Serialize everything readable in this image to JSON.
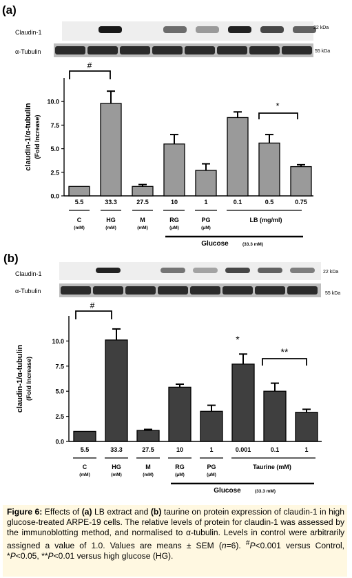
{
  "figure": {
    "panels": [
      {
        "label": "(a)",
        "blot_labels": {
          "claudin": "Claudin-1",
          "tubulin": "α-Tubulin"
        },
        "kda": {
          "claudin": "22 kDa",
          "tubulin": "55 kDa"
        },
        "claudin_band_intensity": [
          0.0,
          0.95,
          0.0,
          0.5,
          0.25,
          0.9,
          0.7,
          0.55
        ]
      },
      {
        "label": "(b)",
        "blot_labels": {
          "claudin": "Claudin-1",
          "tubulin": "α-Tubulin"
        },
        "kda": {
          "claudin": "22 kDa",
          "tubulin": "55 kDa"
        },
        "claudin_band_intensity": [
          0.0,
          0.9,
          0.0,
          0.45,
          0.2,
          0.7,
          0.55,
          0.4
        ]
      }
    ]
  },
  "chart_data": [
    {
      "type": "bar",
      "ylabel": "claudin-1/α-tubulin",
      "ylabel2": "(Fold Increase)",
      "ylim": [
        0,
        12.5
      ],
      "yticks": [
        "0.0",
        "2.5",
        "5.0",
        "7.5",
        "10.0"
      ],
      "ytick_values": [
        0,
        2.5,
        5,
        7.5,
        10
      ],
      "bar_color": "#9a9a9a",
      "categories": [
        "5.5",
        "33.3",
        "27.5",
        "10",
        "1",
        "0.1",
        "0.5",
        "0.75"
      ],
      "values": [
        1.0,
        9.8,
        1.0,
        5.5,
        2.7,
        8.3,
        5.6,
        3.1
      ],
      "errors": [
        0.0,
        1.3,
        0.2,
        1.0,
        0.7,
        0.6,
        0.9,
        0.2
      ],
      "groups": [
        {
          "name": "C",
          "unit": "(mM)"
        },
        {
          "name": "HG",
          "unit": "(mM)"
        },
        {
          "name": "M",
          "unit": "(mM)"
        },
        {
          "name": "RG",
          "unit": "(μM)"
        },
        {
          "name": "PG",
          "unit": "(μM)"
        },
        {
          "name": "LB (mg/ml)",
          "unit": ""
        }
      ],
      "annotations": {
        "hash": "#",
        "star": "*"
      },
      "bottom_label": "Glucose",
      "bottom_label_unit": "(33.3 mM)"
    },
    {
      "type": "bar",
      "ylabel": "claudin-1/α-tubulin",
      "ylabel2": "(Fold Increase)",
      "ylim": [
        0,
        12.5
      ],
      "yticks": [
        "0.0",
        "2.5",
        "5.0",
        "7.5",
        "10.0"
      ],
      "ytick_values": [
        0,
        2.5,
        5,
        7.5,
        10
      ],
      "bar_color": "#3f3f3f",
      "categories": [
        "5.5",
        "33.3",
        "27.5",
        "10",
        "1",
        "0.001",
        "0.1",
        "1"
      ],
      "values": [
        1.0,
        10.1,
        1.1,
        5.4,
        3.0,
        7.7,
        5.0,
        2.9
      ],
      "errors": [
        0.0,
        1.1,
        0.1,
        0.3,
        0.6,
        1.0,
        0.8,
        0.3
      ],
      "groups": [
        {
          "name": "C",
          "unit": "(mM)"
        },
        {
          "name": "HG",
          "unit": "(mM)"
        },
        {
          "name": "M",
          "unit": "(mM)"
        },
        {
          "name": "RG",
          "unit": "(μM)"
        },
        {
          "name": "PG",
          "unit": "(μM)"
        },
        {
          "name": "Taurine (mM)",
          "unit": ""
        }
      ],
      "annotations": {
        "hash": "#",
        "star": "*",
        "double_star": "**"
      },
      "bottom_label": "Glucose",
      "bottom_label_unit": "(33.3 mM)"
    }
  ],
  "caption": {
    "prefix": "Figure 6:",
    "line1_a": " Effects of ",
    "a": "(a)",
    "line1_b": " LB extract and ",
    "b": "(b)",
    "line1_c": " taurine on protein expression of claudin-1 in high glucose-treated ARPE-19 cells. The relative levels of protein for claudin-1 was assessed by the immunoblotting method, and normalised to α-tubulin. Levels in control were arbitrarily assigned a value of 1.0. Values are means ± SEM (",
    "n": "n",
    "n_val": "=6). ",
    "hash_sup": "#",
    "p1": "P",
    "p1_text": "<0.001 versus Control, *",
    "p2": "P",
    "p2_text": "<0.05, **",
    "p3": "P",
    "p3_text": "<0.01 versus high glucose (HG)."
  }
}
